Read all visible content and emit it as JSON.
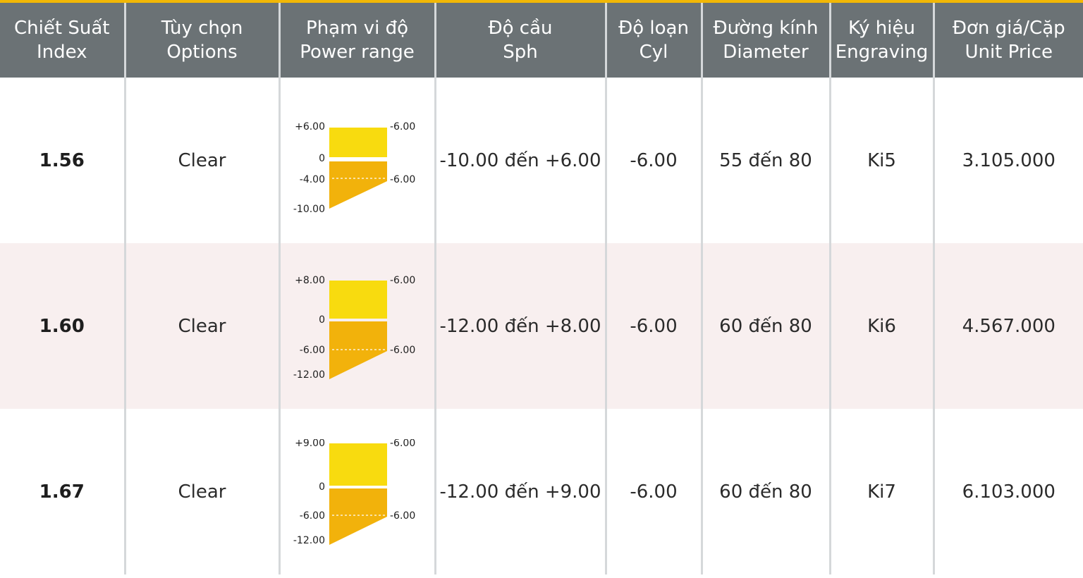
{
  "colors": {
    "header_bg": "#6b7275",
    "accent_line": "#f2b705",
    "plus_zone": "#f8db0f",
    "minus_zone": "#f2b20b",
    "stripe_row": "#f8efef"
  },
  "headers": [
    {
      "vi": "Chiết Suất",
      "en": "Index"
    },
    {
      "vi": "Tùy chọn",
      "en": "Options"
    },
    {
      "vi": "Phạm vi độ",
      "en": "Power range"
    },
    {
      "vi": "Độ cầu",
      "en": "Sph"
    },
    {
      "vi": "Độ loạn",
      "en": "Cyl"
    },
    {
      "vi": "Đường kính",
      "en": "Diameter"
    },
    {
      "vi": "Ký hiệu",
      "en": "Engraving"
    },
    {
      "vi": "Đơn giá/Cặp",
      "en": "Unit Price"
    }
  ],
  "rows": [
    {
      "index": "1.56",
      "option": "Clear",
      "sph": "-10.00 đến +6.00",
      "cyl": "-6.00",
      "diameter": "55 đến 80",
      "engraving": "Ki5",
      "price": "3.105.000",
      "range": {
        "plus": 6,
        "cyl": -6,
        "mid": -4,
        "min": -10,
        "labels": {
          "plus": "+6.00",
          "zero": "0",
          "mid": "-4.00",
          "min": "-10.00",
          "cyl_top": "-6.00",
          "cyl_mid": "-6.00"
        }
      }
    },
    {
      "index": "1.60",
      "option": "Clear",
      "sph": "-12.00 đến +8.00",
      "cyl": "-6.00",
      "diameter": "60 đến 80",
      "engraving": "Ki6",
      "price": "4.567.000",
      "range": {
        "plus": 8,
        "cyl": -6,
        "mid": -6,
        "min": -12,
        "labels": {
          "plus": "+8.00",
          "zero": "0",
          "mid": "-6.00",
          "min": "-12.00",
          "cyl_top": "-6.00",
          "cyl_mid": "-6.00"
        }
      }
    },
    {
      "index": "1.67",
      "option": "Clear",
      "sph": "-12.00 đến +9.00",
      "cyl": "-6.00",
      "diameter": "60 đến 80",
      "engraving": "Ki7",
      "price": "6.103.000",
      "range": {
        "plus": 9,
        "cyl": -6,
        "mid": -6,
        "min": -12,
        "labels": {
          "plus": "+9.00",
          "zero": "0",
          "mid": "-6.00",
          "min": "-12.00",
          "cyl_top": "-6.00",
          "cyl_mid": "-6.00"
        }
      }
    }
  ]
}
